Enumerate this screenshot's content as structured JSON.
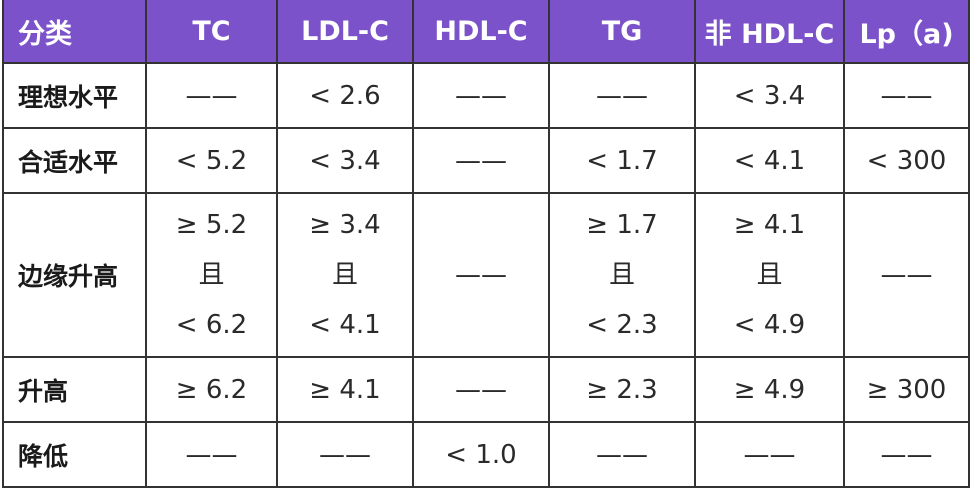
{
  "headers": [
    "分类",
    "TC",
    "LDL-C",
    "HDL-C",
    "TG",
    "非 HDL-C",
    "Lp（a)"
  ],
  "rows": [
    {
      "category": "理想水平",
      "cells": [
        [
          "——"
        ],
        [
          "< 2.6"
        ],
        [
          "——"
        ],
        [
          "——"
        ],
        [
          "< 3.4"
        ],
        [
          "——"
        ]
      ]
    },
    {
      "category": "合适水平",
      "cells": [
        [
          "< 5.2"
        ],
        [
          "< 3.4"
        ],
        [
          "——"
        ],
        [
          "< 1.7"
        ],
        [
          "< 4.1"
        ],
        [
          "< 300"
        ]
      ]
    },
    {
      "category": "边缘升高",
      "cells": [
        [
          "≥ 5.2",
          "且",
          "< 6.2"
        ],
        [
          "≥ 3.4",
          "且",
          "< 4.1"
        ],
        [
          "——"
        ],
        [
          "≥ 1.7",
          "且",
          "< 2.3"
        ],
        [
          "≥ 4.1",
          "且",
          "< 4.9"
        ],
        [
          "——"
        ]
      ]
    },
    {
      "category": "升高",
      "cells": [
        [
          "≥ 6.2"
        ],
        [
          "≥ 4.1"
        ],
        [
          "——"
        ],
        [
          "≥ 2.3"
        ],
        [
          "≥ 4.9"
        ],
        [
          "≥ 300"
        ]
      ]
    },
    {
      "category": "降低",
      "cells": [
        [
          "——"
        ],
        [
          "——"
        ],
        [
          "< 1.0"
        ],
        [
          "——"
        ],
        [
          "——"
        ],
        [
          "——"
        ]
      ]
    }
  ],
  "colors": {
    "header_bg": "#7b52c9",
    "header_text": "#ffffff",
    "border": "#333333"
  }
}
